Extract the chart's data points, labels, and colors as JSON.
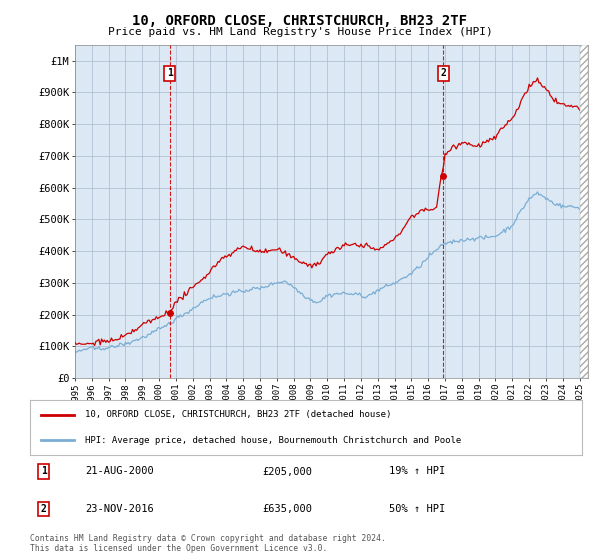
{
  "title": "10, ORFORD CLOSE, CHRISTCHURCH, BH23 2TF",
  "subtitle": "Price paid vs. HM Land Registry's House Price Index (HPI)",
  "xlim_start": 1995.0,
  "xlim_end": 2025.5,
  "ylim": [
    0,
    1050000
  ],
  "yticks": [
    0,
    100000,
    200000,
    300000,
    400000,
    500000,
    600000,
    700000,
    800000,
    900000,
    1000000
  ],
  "ytick_labels": [
    "£0",
    "£100K",
    "£200K",
    "£300K",
    "£400K",
    "£500K",
    "£600K",
    "£700K",
    "£800K",
    "£900K",
    "£1M"
  ],
  "xticks": [
    1995,
    1996,
    1997,
    1998,
    1999,
    2000,
    2001,
    2002,
    2003,
    2004,
    2005,
    2006,
    2007,
    2008,
    2009,
    2010,
    2011,
    2012,
    2013,
    2014,
    2015,
    2016,
    2017,
    2018,
    2019,
    2020,
    2021,
    2022,
    2023,
    2024,
    2025
  ],
  "sale1_x": 2000.64,
  "sale1_y": 205000,
  "sale1_label": "1",
  "sale1_date": "21-AUG-2000",
  "sale1_price": "£205,000",
  "sale1_hpi": "19% ↑ HPI",
  "sale2_x": 2016.9,
  "sale2_y": 635000,
  "sale2_label": "2",
  "sale2_date": "23-NOV-2016",
  "sale2_price": "£635,000",
  "sale2_hpi": "50% ↑ HPI",
  "line1_color": "#cc0000",
  "line2_color": "#7aadd4",
  "marker_color": "#cc0000",
  "dashed_color": "#cc0000",
  "chart_bg_color": "#dce9f5",
  "legend_line1": "10, ORFORD CLOSE, CHRISTCHURCH, BH23 2TF (detached house)",
  "legend_line2": "HPI: Average price, detached house, Bournemouth Christchurch and Poole",
  "footnote": "Contains HM Land Registry data © Crown copyright and database right 2024.\nThis data is licensed under the Open Government Licence v3.0.",
  "background_color": "#ffffff",
  "grid_color": "#aabbcc"
}
